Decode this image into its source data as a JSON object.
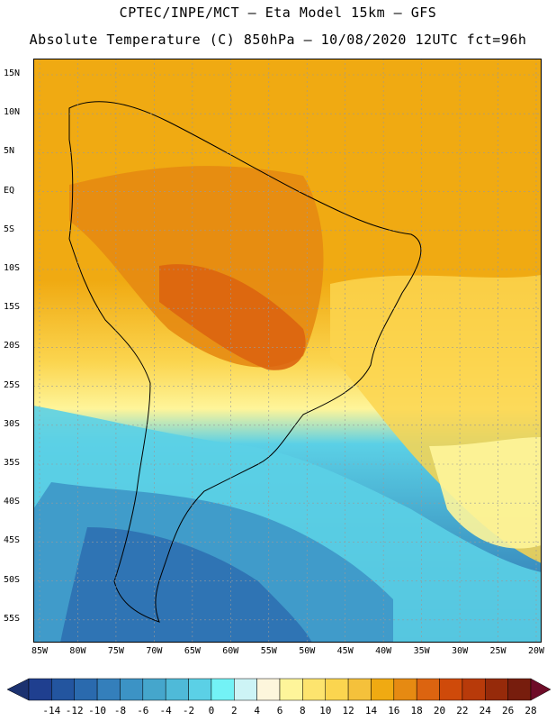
{
  "title": {
    "line1": "CPTEC/INPE/MCT –  Eta Model 15km – GFS",
    "line2": "Absolute Temperature (C) 850hPa – 10/08/2020 12UTC fct=96h"
  },
  "latitude_labels": [
    "15N",
    "10N",
    "5N",
    "EQ",
    "5S",
    "10S",
    "15S",
    "20S",
    "25S",
    "30S",
    "35S",
    "40S",
    "45S",
    "50S",
    "55S"
  ],
  "longitude_labels": [
    "85W",
    "80W",
    "75W",
    "70W",
    "65W",
    "60W",
    "55W",
    "50W",
    "45W",
    "40W",
    "35W",
    "30W",
    "25W",
    "20W"
  ],
  "colorbar": {
    "labels": [
      "-14",
      "-12",
      "-10",
      "-8",
      "-6",
      "-4",
      "-2",
      "0",
      "2",
      "4",
      "6",
      "8",
      "10",
      "12",
      "14",
      "16",
      "18",
      "20",
      "22",
      "24",
      "26",
      "28"
    ],
    "colors": [
      "#1f3f8f",
      "#23559f",
      "#2a6aae",
      "#347fbb",
      "#3c93c5",
      "#45a6cc",
      "#4fbad8",
      "#5bd0e6",
      "#73f2f6",
      "#cdf4f6",
      "#fdf6dc",
      "#fef59a",
      "#fde46e",
      "#fbd54f",
      "#f5c13b",
      "#f0aa12",
      "#e68a12",
      "#dc6410",
      "#cf4a0a",
      "#b83a0a",
      "#962a0a",
      "#771d0d"
    ],
    "low_arrow_color": "#1c3270",
    "high_arrow_color": "#6e0c28"
  }
}
